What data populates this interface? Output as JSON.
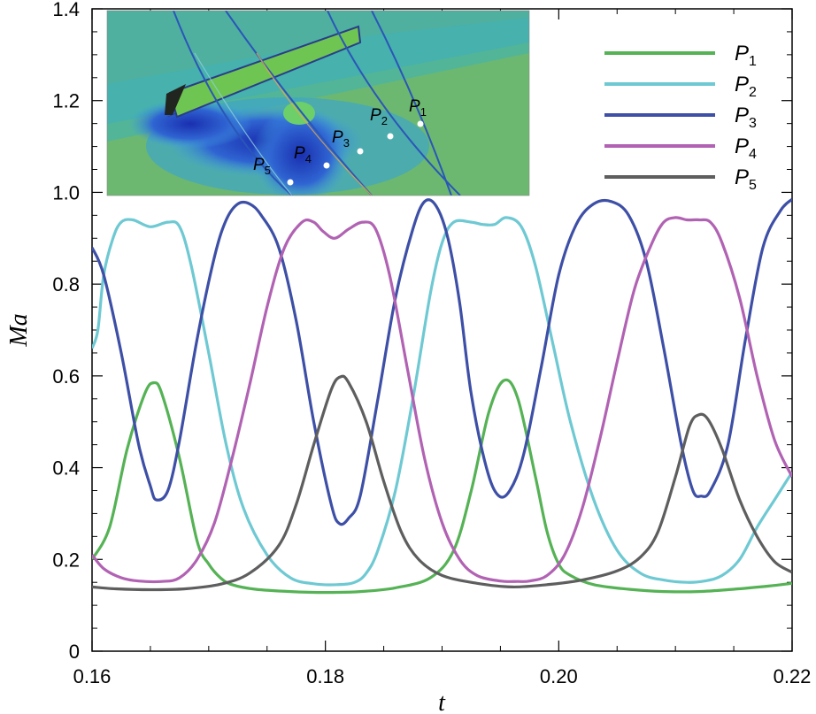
{
  "chart_data": {
    "type": "line",
    "title": "",
    "xlabel": "t",
    "ylabel": "Ma",
    "xlim": [
      0.16,
      0.22
    ],
    "ylim": [
      0,
      1.4
    ],
    "xticks": [
      "0.16",
      "0.18",
      "0.20",
      "0.22"
    ],
    "xtick_values": [
      0.16,
      0.18,
      0.2,
      0.22
    ],
    "yticks": [
      "0",
      "0.2",
      "0.4",
      "0.6",
      "0.8",
      "1.0",
      "1.2",
      "1.4"
    ],
    "ytick_values": [
      0,
      0.2,
      0.4,
      0.6,
      0.8,
      1.0,
      1.2,
      1.4
    ],
    "grid": false,
    "legend_position": "top-right",
    "series": [
      {
        "name": "P1",
        "name_base": "P",
        "name_sub": "1",
        "color": "#55b255",
        "points": [
          [
            0.16,
            0.2
          ],
          [
            0.1615,
            0.27
          ],
          [
            0.163,
            0.44
          ],
          [
            0.1645,
            0.56
          ],
          [
            0.1653,
            0.585
          ],
          [
            0.166,
            0.56
          ],
          [
            0.1675,
            0.42
          ],
          [
            0.169,
            0.24
          ],
          [
            0.17,
            0.19
          ],
          [
            0.171,
            0.16
          ],
          [
            0.172,
            0.145
          ],
          [
            0.174,
            0.135
          ],
          [
            0.177,
            0.13
          ],
          [
            0.18,
            0.128
          ],
          [
            0.183,
            0.13
          ],
          [
            0.186,
            0.138
          ],
          [
            0.189,
            0.16
          ],
          [
            0.191,
            0.22
          ],
          [
            0.1925,
            0.35
          ],
          [
            0.194,
            0.52
          ],
          [
            0.1953,
            0.59
          ],
          [
            0.1965,
            0.55
          ],
          [
            0.198,
            0.38
          ],
          [
            0.199,
            0.26
          ],
          [
            0.2,
            0.19
          ],
          [
            0.201,
            0.165
          ],
          [
            0.203,
            0.145
          ],
          [
            0.206,
            0.135
          ],
          [
            0.209,
            0.13
          ],
          [
            0.212,
            0.13
          ],
          [
            0.215,
            0.135
          ],
          [
            0.218,
            0.142
          ],
          [
            0.22,
            0.148
          ]
        ]
      },
      {
        "name": "P2",
        "name_base": "P",
        "name_sub": "2",
        "color": "#6ec9d3",
        "points": [
          [
            0.16,
            0.66
          ],
          [
            0.1605,
            0.7
          ],
          [
            0.161,
            0.82
          ],
          [
            0.1618,
            0.9
          ],
          [
            0.1625,
            0.935
          ],
          [
            0.1635,
            0.94
          ],
          [
            0.165,
            0.925
          ],
          [
            0.1665,
            0.935
          ],
          [
            0.1675,
            0.925
          ],
          [
            0.1685,
            0.84
          ],
          [
            0.17,
            0.65
          ],
          [
            0.1715,
            0.45
          ],
          [
            0.173,
            0.31
          ],
          [
            0.175,
            0.21
          ],
          [
            0.177,
            0.16
          ],
          [
            0.179,
            0.147
          ],
          [
            0.181,
            0.145
          ],
          [
            0.1825,
            0.15
          ],
          [
            0.1835,
            0.17
          ],
          [
            0.1845,
            0.22
          ],
          [
            0.186,
            0.35
          ],
          [
            0.1875,
            0.55
          ],
          [
            0.189,
            0.78
          ],
          [
            0.19,
            0.89
          ],
          [
            0.191,
            0.935
          ],
          [
            0.1925,
            0.935
          ],
          [
            0.1935,
            0.93
          ],
          [
            0.1945,
            0.93
          ],
          [
            0.1955,
            0.945
          ],
          [
            0.1968,
            0.925
          ],
          [
            0.198,
            0.84
          ],
          [
            0.1995,
            0.67
          ],
          [
            0.201,
            0.5
          ],
          [
            0.203,
            0.33
          ],
          [
            0.205,
            0.22
          ],
          [
            0.207,
            0.17
          ],
          [
            0.209,
            0.155
          ],
          [
            0.211,
            0.15
          ],
          [
            0.2125,
            0.153
          ],
          [
            0.214,
            0.165
          ],
          [
            0.2155,
            0.2
          ],
          [
            0.217,
            0.27
          ],
          [
            0.2185,
            0.33
          ],
          [
            0.22,
            0.39
          ]
        ]
      },
      {
        "name": "P3",
        "name_base": "P",
        "name_sub": "3",
        "color": "#3d4fa6",
        "points": [
          [
            0.16,
            0.88
          ],
          [
            0.161,
            0.82
          ],
          [
            0.1625,
            0.65
          ],
          [
            0.164,
            0.45
          ],
          [
            0.165,
            0.36
          ],
          [
            0.1655,
            0.33
          ],
          [
            0.1665,
            0.35
          ],
          [
            0.1675,
            0.46
          ],
          [
            0.169,
            0.68
          ],
          [
            0.1705,
            0.86
          ],
          [
            0.1715,
            0.94
          ],
          [
            0.1725,
            0.975
          ],
          [
            0.1735,
            0.975
          ],
          [
            0.1745,
            0.95
          ],
          [
            0.176,
            0.88
          ],
          [
            0.1775,
            0.72
          ],
          [
            0.179,
            0.5
          ],
          [
            0.1805,
            0.32
          ],
          [
            0.1812,
            0.278
          ],
          [
            0.182,
            0.29
          ],
          [
            0.183,
            0.34
          ],
          [
            0.1845,
            0.55
          ],
          [
            0.186,
            0.77
          ],
          [
            0.1875,
            0.92
          ],
          [
            0.1885,
            0.98
          ],
          [
            0.1895,
            0.97
          ],
          [
            0.1905,
            0.9
          ],
          [
            0.1915,
            0.76
          ],
          [
            0.1925,
            0.56
          ],
          [
            0.1938,
            0.4
          ],
          [
            0.1948,
            0.34
          ],
          [
            0.1958,
            0.35
          ],
          [
            0.197,
            0.43
          ],
          [
            0.1985,
            0.62
          ],
          [
            0.2,
            0.82
          ],
          [
            0.2015,
            0.93
          ],
          [
            0.203,
            0.975
          ],
          [
            0.2045,
            0.98
          ],
          [
            0.206,
            0.95
          ],
          [
            0.2075,
            0.85
          ],
          [
            0.209,
            0.66
          ],
          [
            0.2105,
            0.45
          ],
          [
            0.2115,
            0.35
          ],
          [
            0.2122,
            0.338
          ],
          [
            0.213,
            0.35
          ],
          [
            0.2145,
            0.45
          ],
          [
            0.216,
            0.68
          ],
          [
            0.2175,
            0.88
          ],
          [
            0.219,
            0.96
          ],
          [
            0.22,
            0.985
          ]
        ]
      },
      {
        "name": "P4",
        "name_base": "P",
        "name_sub": "4",
        "color": "#b162b3",
        "points": [
          [
            0.16,
            0.21
          ],
          [
            0.161,
            0.18
          ],
          [
            0.1625,
            0.16
          ],
          [
            0.164,
            0.153
          ],
          [
            0.166,
            0.152
          ],
          [
            0.1675,
            0.16
          ],
          [
            0.169,
            0.2
          ],
          [
            0.1705,
            0.28
          ],
          [
            0.172,
            0.42
          ],
          [
            0.1735,
            0.58
          ],
          [
            0.175,
            0.75
          ],
          [
            0.1765,
            0.88
          ],
          [
            0.178,
            0.935
          ],
          [
            0.179,
            0.935
          ],
          [
            0.1798,
            0.915
          ],
          [
            0.1808,
            0.9
          ],
          [
            0.182,
            0.92
          ],
          [
            0.1832,
            0.935
          ],
          [
            0.1843,
            0.92
          ],
          [
            0.1855,
            0.82
          ],
          [
            0.187,
            0.62
          ],
          [
            0.1885,
            0.42
          ],
          [
            0.19,
            0.28
          ],
          [
            0.1915,
            0.2
          ],
          [
            0.193,
            0.165
          ],
          [
            0.195,
            0.153
          ],
          [
            0.1965,
            0.152
          ],
          [
            0.1975,
            0.153
          ],
          [
            0.199,
            0.165
          ],
          [
            0.2005,
            0.21
          ],
          [
            0.202,
            0.31
          ],
          [
            0.2035,
            0.46
          ],
          [
            0.205,
            0.63
          ],
          [
            0.2065,
            0.79
          ],
          [
            0.208,
            0.89
          ],
          [
            0.209,
            0.935
          ],
          [
            0.21,
            0.945
          ],
          [
            0.211,
            0.94
          ],
          [
            0.212,
            0.94
          ],
          [
            0.213,
            0.935
          ],
          [
            0.214,
            0.89
          ],
          [
            0.2155,
            0.77
          ],
          [
            0.217,
            0.6
          ],
          [
            0.2185,
            0.46
          ],
          [
            0.22,
            0.38
          ]
        ]
      },
      {
        "name": "P5",
        "name_base": "P",
        "name_sub": "5",
        "color": "#5e5e5e",
        "points": [
          [
            0.16,
            0.14
          ],
          [
            0.162,
            0.136
          ],
          [
            0.165,
            0.134
          ],
          [
            0.168,
            0.136
          ],
          [
            0.171,
            0.146
          ],
          [
            0.1735,
            0.17
          ],
          [
            0.176,
            0.23
          ],
          [
            0.1775,
            0.32
          ],
          [
            0.179,
            0.45
          ],
          [
            0.1805,
            0.57
          ],
          [
            0.1813,
            0.598
          ],
          [
            0.182,
            0.585
          ],
          [
            0.1835,
            0.5
          ],
          [
            0.185,
            0.37
          ],
          [
            0.1865,
            0.26
          ],
          [
            0.188,
            0.2
          ],
          [
            0.19,
            0.165
          ],
          [
            0.193,
            0.148
          ],
          [
            0.196,
            0.14
          ],
          [
            0.199,
            0.145
          ],
          [
            0.202,
            0.155
          ],
          [
            0.205,
            0.175
          ],
          [
            0.207,
            0.205
          ],
          [
            0.2085,
            0.26
          ],
          [
            0.21,
            0.38
          ],
          [
            0.2112,
            0.49
          ],
          [
            0.212,
            0.515
          ],
          [
            0.2128,
            0.505
          ],
          [
            0.214,
            0.44
          ],
          [
            0.2155,
            0.33
          ],
          [
            0.217,
            0.25
          ],
          [
            0.2185,
            0.195
          ],
          [
            0.22,
            0.172
          ]
        ]
      }
    ]
  },
  "inset": {
    "labels": [
      {
        "base": "P",
        "sub": "2"
      },
      {
        "base": "P",
        "sub": "1"
      },
      {
        "base": "P",
        "sub": "3"
      },
      {
        "base": "P",
        "sub": "4"
      },
      {
        "base": "P",
        "sub": "5"
      }
    ]
  }
}
